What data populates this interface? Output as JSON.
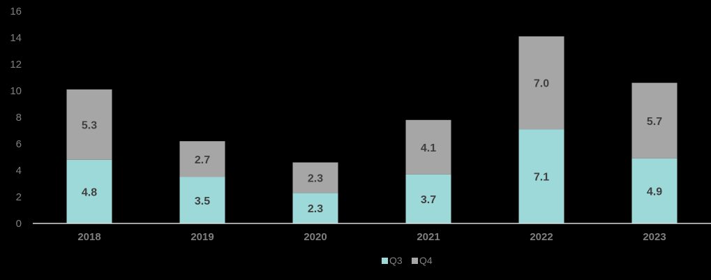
{
  "chart_data": {
    "type": "bar",
    "stacked": true,
    "categories": [
      "2018",
      "2019",
      "2020",
      "2021",
      "2022",
      "2023"
    ],
    "series": [
      {
        "name": "Q3",
        "values": [
          4.8,
          3.5,
          2.3,
          3.7,
          7.1,
          4.9
        ],
        "color": "#9ed9d9"
      },
      {
        "name": "Q4",
        "values": [
          5.3,
          2.7,
          2.3,
          4.1,
          7.0,
          5.7
        ],
        "color": "#a6a6a6"
      }
    ],
    "data_labels": [
      [
        "4.8",
        "3.5",
        "2.3",
        "3.7",
        "7.1",
        "4.9"
      ],
      [
        "5.3",
        "2.7",
        "2.3",
        "4.1",
        "7.0",
        "5.7"
      ]
    ],
    "y_ticks": [
      "0",
      "2",
      "4",
      "6",
      "8",
      "10",
      "12",
      "14",
      "16"
    ],
    "ylim": [
      0,
      16
    ],
    "grid": false,
    "legend": "bottom-center",
    "background": "#000000",
    "axis_color": "#d9d9d9"
  }
}
